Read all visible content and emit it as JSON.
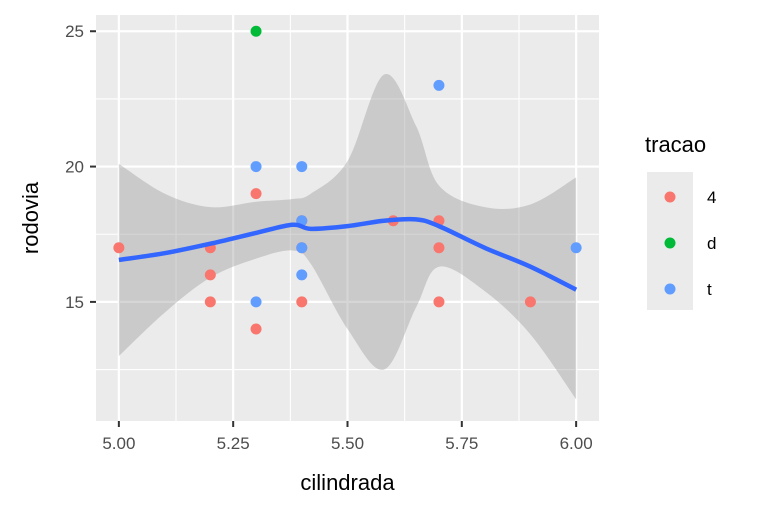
{
  "chart_data": {
    "type": "scatter",
    "xlabel": "cilindrada",
    "ylabel": "rodovia",
    "xlim": [
      4.95,
      6.05
    ],
    "ylim": [
      10.6,
      25.6
    ],
    "x_ticks": [
      5.0,
      5.25,
      5.5,
      5.75,
      6.0
    ],
    "x_tick_labels": [
      "5.00",
      "5.25",
      "5.50",
      "5.75",
      "6.00"
    ],
    "y_ticks": [
      15,
      20,
      25
    ],
    "y_tick_labels": [
      "15",
      "20",
      "25"
    ],
    "grid": true,
    "legend": {
      "title": "tracao",
      "position": "right",
      "entries": [
        {
          "label": "4",
          "color": "#F8766D"
        },
        {
          "label": "d",
          "color": "#00BA38"
        },
        {
          "label": "t",
          "color": "#619CFF"
        }
      ]
    },
    "series": [
      {
        "name": "4",
        "color": "#F8766D",
        "points": [
          [
            5.0,
            17
          ],
          [
            5.2,
            17
          ],
          [
            5.2,
            16
          ],
          [
            5.2,
            15
          ],
          [
            5.3,
            19
          ],
          [
            5.3,
            14
          ],
          [
            5.4,
            18
          ],
          [
            5.4,
            17
          ],
          [
            5.4,
            15
          ],
          [
            5.6,
            18
          ],
          [
            5.7,
            18
          ],
          [
            5.7,
            17
          ],
          [
            5.7,
            15
          ],
          [
            5.9,
            15
          ]
        ]
      },
      {
        "name": "d",
        "color": "#00BA38",
        "points": [
          [
            5.3,
            25
          ]
        ]
      },
      {
        "name": "t",
        "color": "#619CFF",
        "points": [
          [
            5.3,
            20
          ],
          [
            5.3,
            15
          ],
          [
            5.4,
            20
          ],
          [
            5.4,
            18
          ],
          [
            5.4,
            17
          ],
          [
            5.4,
            16
          ],
          [
            5.7,
            23
          ],
          [
            6.0,
            17
          ]
        ]
      }
    ],
    "smooth": {
      "color": "#3366FF",
      "ribbon_color": "#999999",
      "x": [
        5.0,
        5.1,
        5.2,
        5.3,
        5.38,
        5.42,
        5.5,
        5.58,
        5.65,
        5.7,
        5.8,
        5.9,
        6.0
      ],
      "y": [
        16.55,
        16.8,
        17.15,
        17.55,
        17.85,
        17.7,
        17.8,
        18.0,
        18.05,
        17.8,
        17.0,
        16.3,
        15.45
      ],
      "lower": [
        13.0,
        14.6,
        15.9,
        16.6,
        16.9,
        16.4,
        14.0,
        12.5,
        14.8,
        16.3,
        15.4,
        13.8,
        11.4
      ],
      "upper": [
        20.1,
        19.0,
        18.5,
        18.7,
        18.8,
        19.0,
        20.2,
        23.4,
        21.5,
        19.3,
        18.5,
        18.6,
        19.6
      ]
    }
  }
}
